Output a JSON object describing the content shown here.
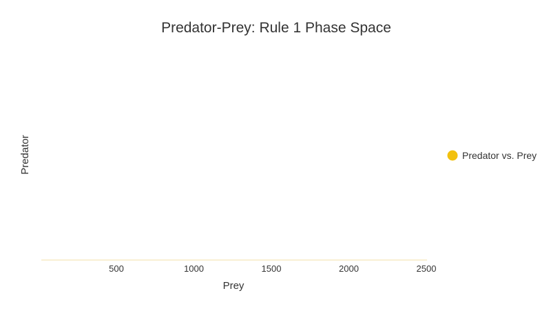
{
  "chart_data": {
    "type": "scatter",
    "title": "Predator-Prey: Rule 1 Phase Space",
    "xlabel": "Prey",
    "ylabel": "Predator",
    "x_ticks": [
      500,
      1000,
      1500,
      2000,
      2500
    ],
    "xlim": [
      0,
      2500
    ],
    "grid": false,
    "legend_position": "right",
    "series": [
      {
        "name": "Predator vs. Prey",
        "color": "#f2c10f",
        "points": []
      }
    ]
  }
}
